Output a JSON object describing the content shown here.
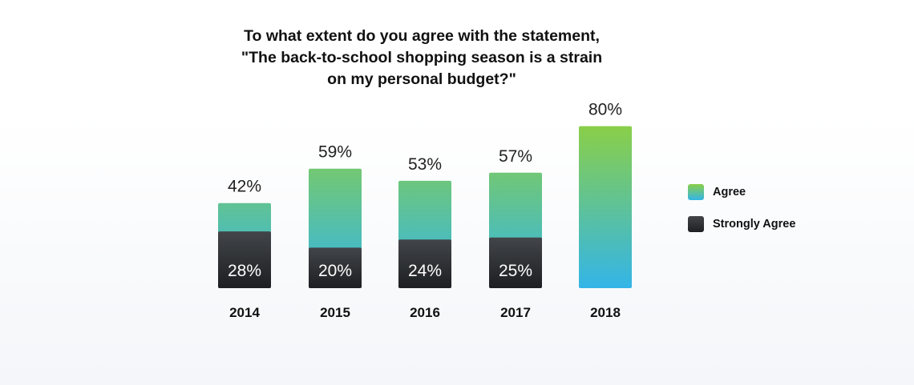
{
  "title_lines": [
    "To what extent do you agree with the statement,",
    "\"The back-to-school shopping season is a strain",
    "on my personal budget?\""
  ],
  "legend": [
    {
      "label": "Agree",
      "color_top": "#8acf48",
      "color_bottom": "#33b5e8"
    },
    {
      "label": "Strongly Agree",
      "color_top": "#424549",
      "color_bottom": "#1d1f22"
    }
  ],
  "chart_data": {
    "type": "bar",
    "stacked": true,
    "categories": [
      "2014",
      "2015",
      "2016",
      "2017",
      "2018"
    ],
    "series": [
      {
        "name": "Strongly Agree",
        "values": [
          28,
          20,
          24,
          25,
          null
        ],
        "labels": [
          "28%",
          "20%",
          "24%",
          "25%",
          ""
        ]
      },
      {
        "name": "Agree",
        "values": [
          42,
          59,
          53,
          57,
          80
        ],
        "labels": [
          "42%",
          "59%",
          "53%",
          "57%",
          "80%"
        ]
      }
    ],
    "ylim": [
      0,
      100
    ],
    "grid": false,
    "legend_position": "right"
  }
}
